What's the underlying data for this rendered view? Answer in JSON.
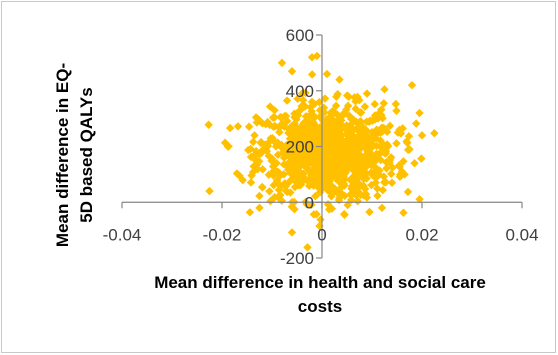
{
  "chart_data": {
    "type": "scatter",
    "title": "",
    "xlabel_lines": [
      "Mean difference in health and social care",
      "costs"
    ],
    "ylabel_lines": [
      "Mean difference in EQ-",
      "5D based QALYs"
    ],
    "xlim": [
      -0.04,
      0.04
    ],
    "ylim": [
      -200,
      600
    ],
    "x_ticks": [
      "-0.04",
      "-0.02",
      "0",
      "0.02",
      "0.04"
    ],
    "x_tick_values": [
      -0.04,
      -0.02,
      0,
      0.02,
      0.04
    ],
    "y_ticks": [
      "-200",
      "0",
      "200",
      "400",
      "600"
    ],
    "y_tick_values": [
      -200,
      0,
      200,
      400,
      600
    ],
    "grid": false,
    "legend": "none",
    "marker": "diamond",
    "color": "#FFC000",
    "cloud": {
      "x_mean": 0.001,
      "x_sd": 0.0068,
      "y_mean": 180,
      "y_sd": 85,
      "n": 1000
    },
    "outliers": [
      {
        "x": -0.0225,
        "y": 40
      },
      {
        "x": -0.0165,
        "y": 95
      },
      {
        "x": -0.0125,
        "y": -20
      },
      {
        "x": -0.008,
        "y": 500
      },
      {
        "x": -0.006,
        "y": 470
      },
      {
        "x": -0.004,
        "y": 390
      },
      {
        "x": -0.002,
        "y": 520
      },
      {
        "x": -0.001,
        "y": 525
      },
      {
        "x": 0.001,
        "y": 460
      },
      {
        "x": 0.0035,
        "y": 440
      },
      {
        "x": 0.009,
        "y": 390
      },
      {
        "x": 0.0125,
        "y": 405
      },
      {
        "x": 0.018,
        "y": 420
      },
      {
        "x": 0.0195,
        "y": 320
      },
      {
        "x": 0.02,
        "y": 240
      },
      {
        "x": 0.0185,
        "y": 140
      },
      {
        "x": 0.016,
        "y": 110
      },
      {
        "x": 0.014,
        "y": 70
      },
      {
        "x": 0.012,
        "y": -20
      },
      {
        "x": 0.0095,
        "y": -35
      },
      {
        "x": 0.0045,
        "y": -45
      },
      {
        "x": -0.0005,
        "y": -85
      },
      {
        "x": -0.0055,
        "y": -25
      },
      {
        "x": -0.0115,
        "y": 190
      },
      {
        "x": -0.0135,
        "y": 240
      },
      {
        "x": -0.0095,
        "y": 330
      },
      {
        "x": 0.0155,
        "y": 260
      },
      {
        "x": 0.0175,
        "y": 190
      }
    ]
  }
}
